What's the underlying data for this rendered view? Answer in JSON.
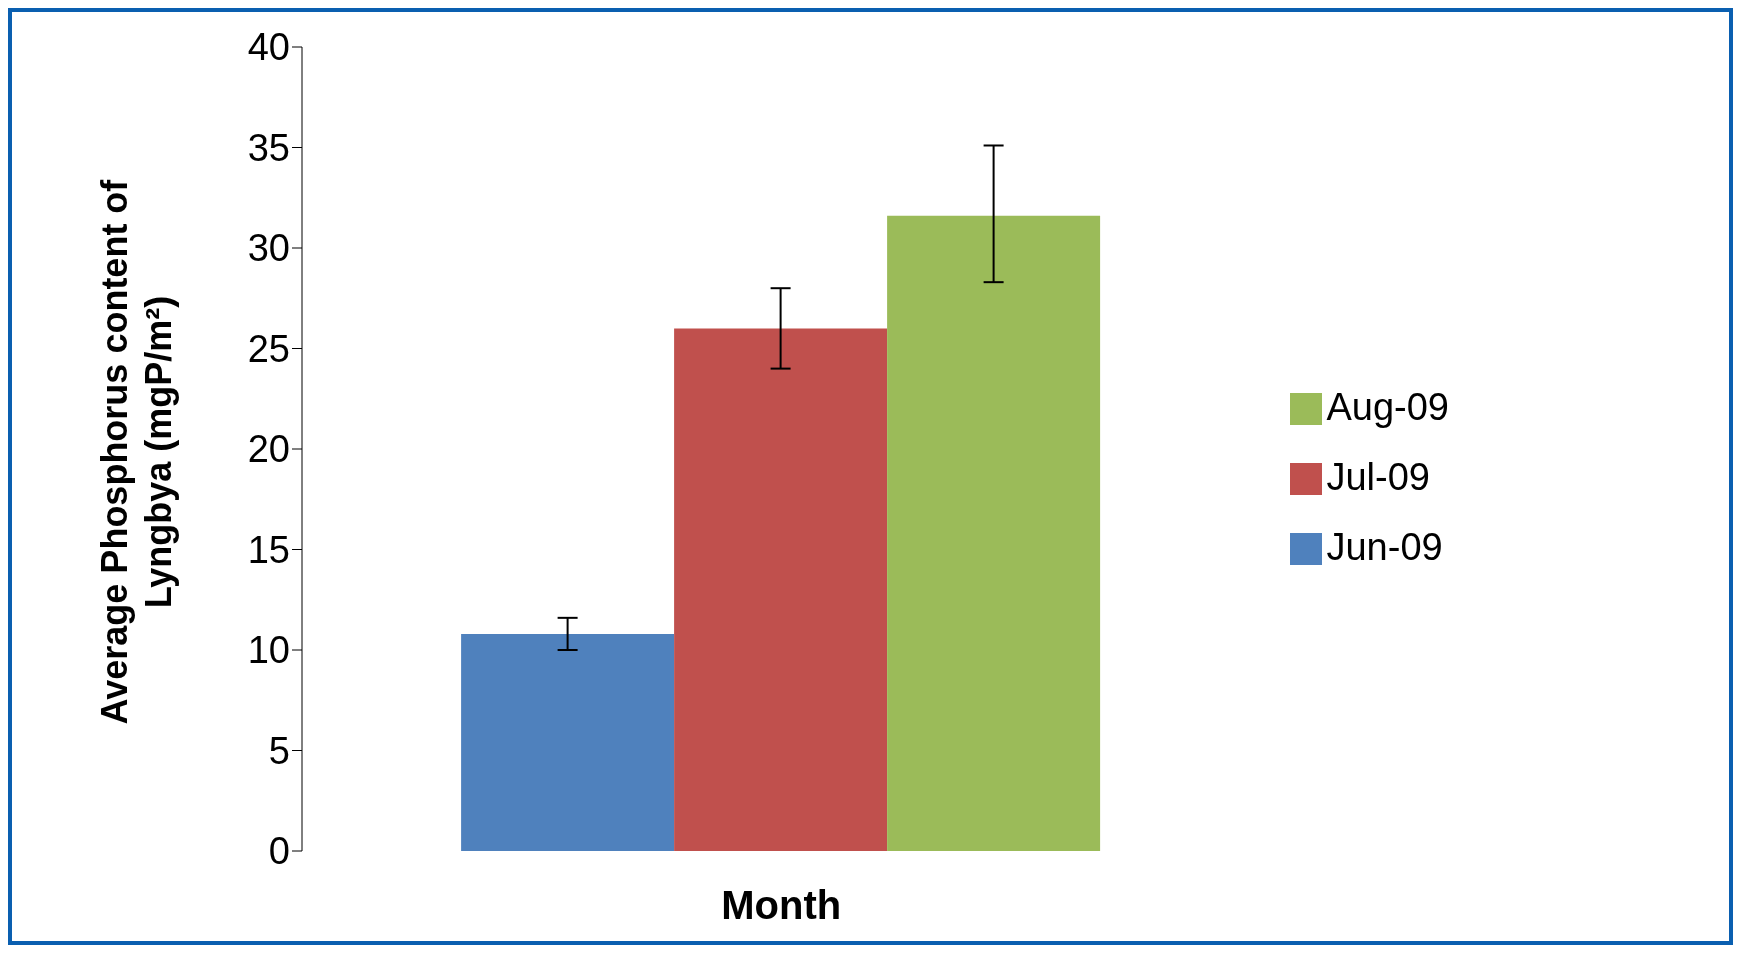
{
  "chart_data": {
    "type": "bar",
    "xlabel": "Month",
    "ylabel": "Average Phosphorus content of Lyngbya (mgP/m²)",
    "categories": [
      null
    ],
    "series": [
      {
        "name": "Jun-09",
        "color": "#4f81bd",
        "values": [
          10.8
        ],
        "errors": [
          [
            10.0,
            11.6
          ]
        ]
      },
      {
        "name": "Jul-09",
        "color": "#c0504d",
        "values": [
          26.0
        ],
        "errors": [
          [
            24.0,
            28.0
          ]
        ]
      },
      {
        "name": "Aug-09",
        "color": "#9bbb59",
        "values": [
          31.6
        ],
        "errors": [
          [
            28.3,
            35.1
          ]
        ]
      }
    ],
    "ylim": [
      0,
      40
    ],
    "yticks": [
      0,
      5,
      10,
      15,
      20,
      25,
      30,
      35,
      40
    ],
    "grid": false,
    "legend": "right"
  }
}
